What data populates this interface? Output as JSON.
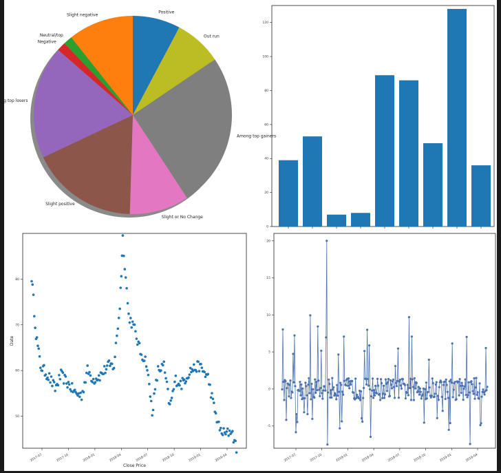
{
  "chart_data": [
    {
      "type": "pie",
      "shadow": true,
      "labels": [
        "Positive",
        "Out run",
        "Among top gainers",
        "Slight or No Change",
        "Slight positive",
        "Among top losers",
        "Negative",
        "Neutral/top",
        "Slight negative"
      ],
      "values": [
        8,
        8,
        26,
        10,
        18,
        19,
        1.5,
        1.5,
        11
      ],
      "colors": [
        "#1f77b4",
        "#bcbd22",
        "#7f7f7f",
        "#e377c2",
        "#8c564b",
        "#9467bd",
        "#d62728",
        "#2ca02c",
        "#ff7f0e"
      ]
    },
    {
      "type": "bar",
      "color": "#1f77b4",
      "values": [
        39,
        53,
        7,
        8,
        89,
        86,
        49,
        128,
        36
      ],
      "ylim": [
        0,
        130
      ],
      "ytick_labels": [
        "0",
        "20",
        "40",
        "60",
        "80",
        "100",
        "120"
      ],
      "ytick_values": [
        0,
        20,
        40,
        60,
        80,
        100,
        120
      ]
    },
    {
      "type": "scatter",
      "color": "#1f77b4",
      "xlabel": "Close Price",
      "ylabel": "Date",
      "ylim": [
        43,
        90
      ],
      "ytick_labels": [
        "50",
        "60",
        "70",
        "80"
      ],
      "ytick_values": [
        50,
        60,
        70,
        80
      ],
      "xtick_labels": [
        "2017-07",
        "2017-10",
        "2018-01",
        "2018-04",
        "2018-07",
        "2018-10",
        "2019-01",
        "2019-04"
      ],
      "key_points": [
        [
          0,
          80.5
        ],
        [
          3,
          68
        ],
        [
          6,
          61
        ],
        [
          12,
          58.5
        ],
        [
          16,
          56
        ],
        [
          20,
          59
        ],
        [
          25,
          57
        ],
        [
          30,
          55
        ],
        [
          34,
          54.5
        ],
        [
          38,
          60
        ],
        [
          42,
          58
        ],
        [
          47,
          59
        ],
        [
          52,
          61
        ],
        [
          56,
          61
        ],
        [
          60,
          74
        ],
        [
          62,
          89
        ],
        [
          66,
          72
        ],
        [
          70,
          69
        ],
        [
          74,
          64
        ],
        [
          78,
          62
        ],
        [
          82,
          51
        ],
        [
          86,
          60
        ],
        [
          90,
          61
        ],
        [
          94,
          52
        ],
        [
          98,
          58
        ],
        [
          102,
          57
        ],
        [
          108,
          60
        ],
        [
          114,
          61
        ],
        [
          120,
          58.5
        ],
        [
          124,
          52
        ],
        [
          128,
          47
        ],
        [
          132,
          46
        ],
        [
          136,
          47
        ],
        [
          140,
          42
        ]
      ]
    },
    {
      "type": "line",
      "color": "#4c72b0",
      "ylim": [
        -8,
        21
      ],
      "ytick_labels": [
        "20",
        "15",
        "10",
        "5",
        "0",
        "-5"
      ],
      "ytick_values": [
        20,
        15,
        10,
        5,
        0,
        -5
      ],
      "xtick_labels": [
        "2017-07",
        "2017-10",
        "2018-01",
        "2018-04",
        "2018-07",
        "2018-10",
        "2019-01",
        "2019-04"
      ]
    }
  ]
}
